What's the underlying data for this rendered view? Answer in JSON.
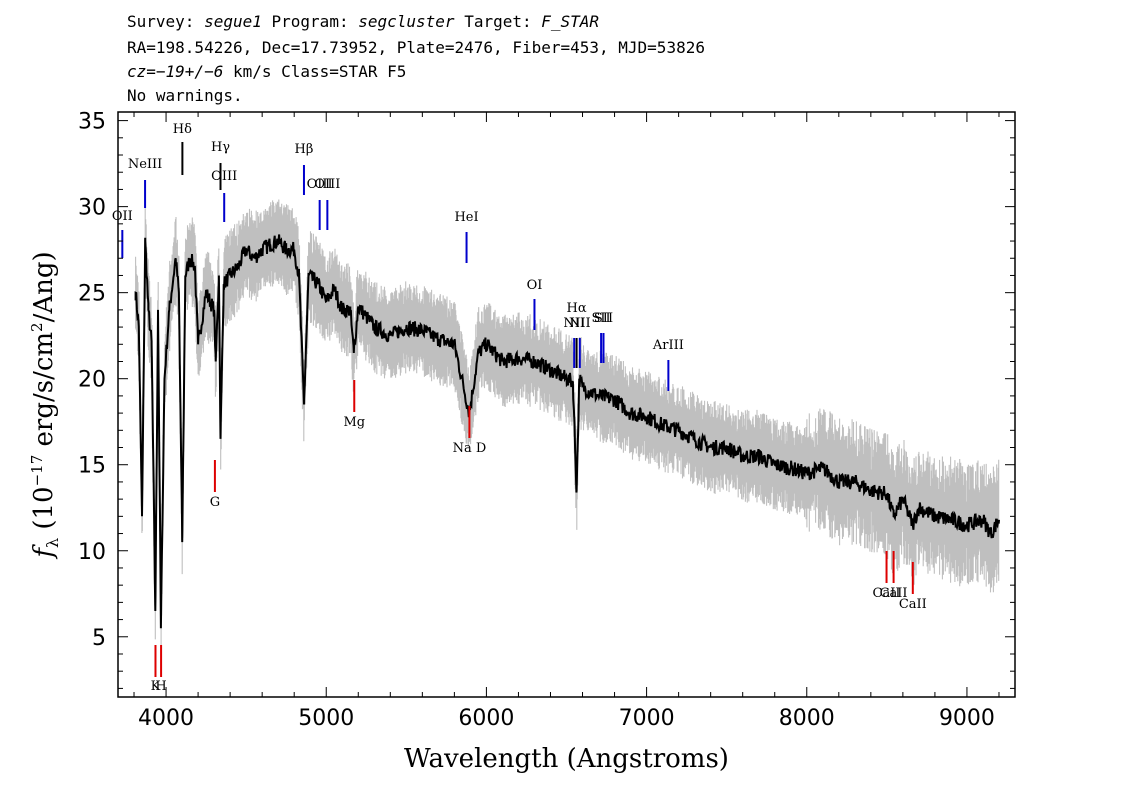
{
  "header": {
    "line1": {
      "survey_label": "Survey:",
      "survey": "segue1",
      "program_label": "Program:",
      "program": "segcluster",
      "target_label": "Target:",
      "target": "F_STAR"
    },
    "line2": "RA=198.54226, Dec=17.73952, Plate=2476, Fiber=453, MJD=53826",
    "line3": {
      "cz": "cz=−19+/−6",
      "rest": " km/s Class=STAR F5"
    },
    "line4": "No warnings."
  },
  "chart_data": {
    "type": "line",
    "title": "",
    "xlabel": "Wavelength (Angstroms)",
    "ylabel": "fλ (10⁻¹⁷ erg/s/cm²/Ang)",
    "xlim": [
      3700,
      9300
    ],
    "ylim": [
      1.5,
      35.5
    ],
    "x_ticks": [
      4000,
      5000,
      6000,
      7000,
      8000,
      9000
    ],
    "y_ticks": [
      5,
      10,
      15,
      20,
      25,
      30,
      35
    ],
    "grid": false,
    "legend": "none",
    "colors": {
      "flux": "#000000",
      "error": "#bfbfbf",
      "emission": "#0000cc",
      "absorption": "#dd0000"
    },
    "series": [
      {
        "role": "flux (smoothed)",
        "x": [
          3810,
          3830,
          3850,
          3870,
          3890,
          3910,
          3933,
          3950,
          3968,
          3990,
          4020,
          4060,
          4080,
          4101,
          4120,
          4150,
          4180,
          4200,
          4250,
          4300,
          4310,
          4330,
          4340,
          4360,
          4400,
          4450,
          4500,
          4550,
          4600,
          4650,
          4700,
          4750,
          4800,
          4830,
          4861,
          4890,
          4950,
          5000,
          5050,
          5100,
          5150,
          5172,
          5200,
          5300,
          5400,
          5500,
          5600,
          5700,
          5800,
          5893,
          5950,
          6000,
          6100,
          6200,
          6300,
          6400,
          6500,
          6540,
          6563,
          6580,
          6600,
          6700,
          6800,
          6900,
          7000,
          7100,
          7200,
          7300,
          7400,
          7500,
          7600,
          7700,
          7800,
          7900,
          8000,
          8100,
          8200,
          8300,
          8400,
          8500,
          8542,
          8600,
          8662,
          8700,
          8800,
          8900,
          9000,
          9100,
          9150,
          9200
        ],
        "y": [
          25,
          23,
          12,
          28,
          24,
          22,
          6.5,
          24,
          5.5,
          20,
          24,
          27,
          25,
          10.5,
          26,
          27,
          26.5,
          22,
          25,
          24,
          21,
          26,
          16.5,
          25.5,
          26,
          26.5,
          27.5,
          27,
          27.5,
          27.8,
          28,
          27.5,
          27.5,
          26,
          18.5,
          26,
          25.5,
          24.5,
          25.2,
          24,
          24,
          21.5,
          24.2,
          23,
          22.5,
          23,
          22.8,
          22.3,
          22,
          18,
          21.5,
          22,
          21,
          21.2,
          21,
          20.5,
          20,
          19.8,
          13.5,
          20,
          19.5,
          19,
          18.8,
          18,
          17.8,
          17.3,
          17,
          16.5,
          16,
          16,
          15.5,
          15.5,
          15,
          14.8,
          14.5,
          14.8,
          14,
          14,
          13.5,
          13.3,
          12,
          13,
          11.5,
          12.5,
          12,
          11.8,
          11.5,
          11.8,
          11,
          11.8
        ]
      }
    ],
    "emission_lines": [
      {
        "label": "OII",
        "x": 3727
      },
      {
        "label": "NeIII",
        "x": 3869
      },
      {
        "label": "Hδ",
        "x": 4102
      },
      {
        "label": "Hγ",
        "x": 4340
      },
      {
        "label": "OIII",
        "x": 4363
      },
      {
        "label": "Hβ",
        "x": 4861
      },
      {
        "label": "OIII",
        "x": 4959
      },
      {
        "label": "OIII",
        "x": 5007
      },
      {
        "label": "HeI",
        "x": 5876
      },
      {
        "label": "OI",
        "x": 6300
      },
      {
        "label": "NII",
        "x": 6548
      },
      {
        "label": "Hα",
        "x": 6563
      },
      {
        "label": "NII",
        "x": 6583
      },
      {
        "label": "SII",
        "x": 6716
      },
      {
        "label": "SII",
        "x": 6731
      },
      {
        "label": "ArIII",
        "x": 7136
      }
    ],
    "absorption_lines": [
      {
        "label": "K",
        "x": 3934
      },
      {
        "label": "H",
        "x": 3969
      },
      {
        "label": "G",
        "x": 4305
      },
      {
        "label": "Mg",
        "x": 5175
      },
      {
        "label": "Na D",
        "x": 5894
      },
      {
        "label": "CaII",
        "x": 8498
      },
      {
        "label": "CaII",
        "x": 8542
      },
      {
        "label": "CaII",
        "x": 8662
      }
    ]
  }
}
